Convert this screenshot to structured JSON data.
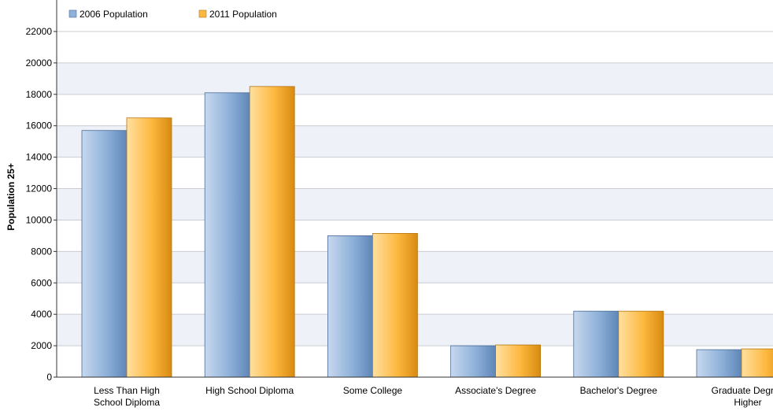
{
  "chart_data": {
    "type": "bar",
    "categories": [
      "Less Than High School Diploma",
      "High School Diploma",
      "Some College",
      "Associate's Degree",
      "Bachelor's Degree",
      "Graduate Degree or Higher"
    ],
    "category_lines": [
      [
        "Less Than High",
        "School Diploma"
      ],
      [
        "High School Diploma"
      ],
      [
        "Some College"
      ],
      [
        "Associate's Degree"
      ],
      [
        "Bachelor's Degree"
      ],
      [
        "Graduate Degree",
        "Higher"
      ]
    ],
    "series": [
      {
        "name": "2006 Population",
        "values": [
          15700,
          18100,
          9000,
          2000,
          4200,
          1750
        ],
        "color": "#8eb1d9"
      },
      {
        "name": "2011 Population",
        "values": [
          16500,
          18500,
          9150,
          2050,
          4200,
          1800
        ],
        "color": "#fdb83f"
      }
    ],
    "ylabel": "Population 25+",
    "xlabel": "",
    "ylim": [
      0,
      22000
    ],
    "yticks": [
      0,
      2000,
      4000,
      6000,
      8000,
      10000,
      12000,
      14000,
      16000,
      18000,
      20000,
      22000
    ],
    "grid": true,
    "legend_position": "top-left",
    "band_color": "#eef1f7"
  }
}
